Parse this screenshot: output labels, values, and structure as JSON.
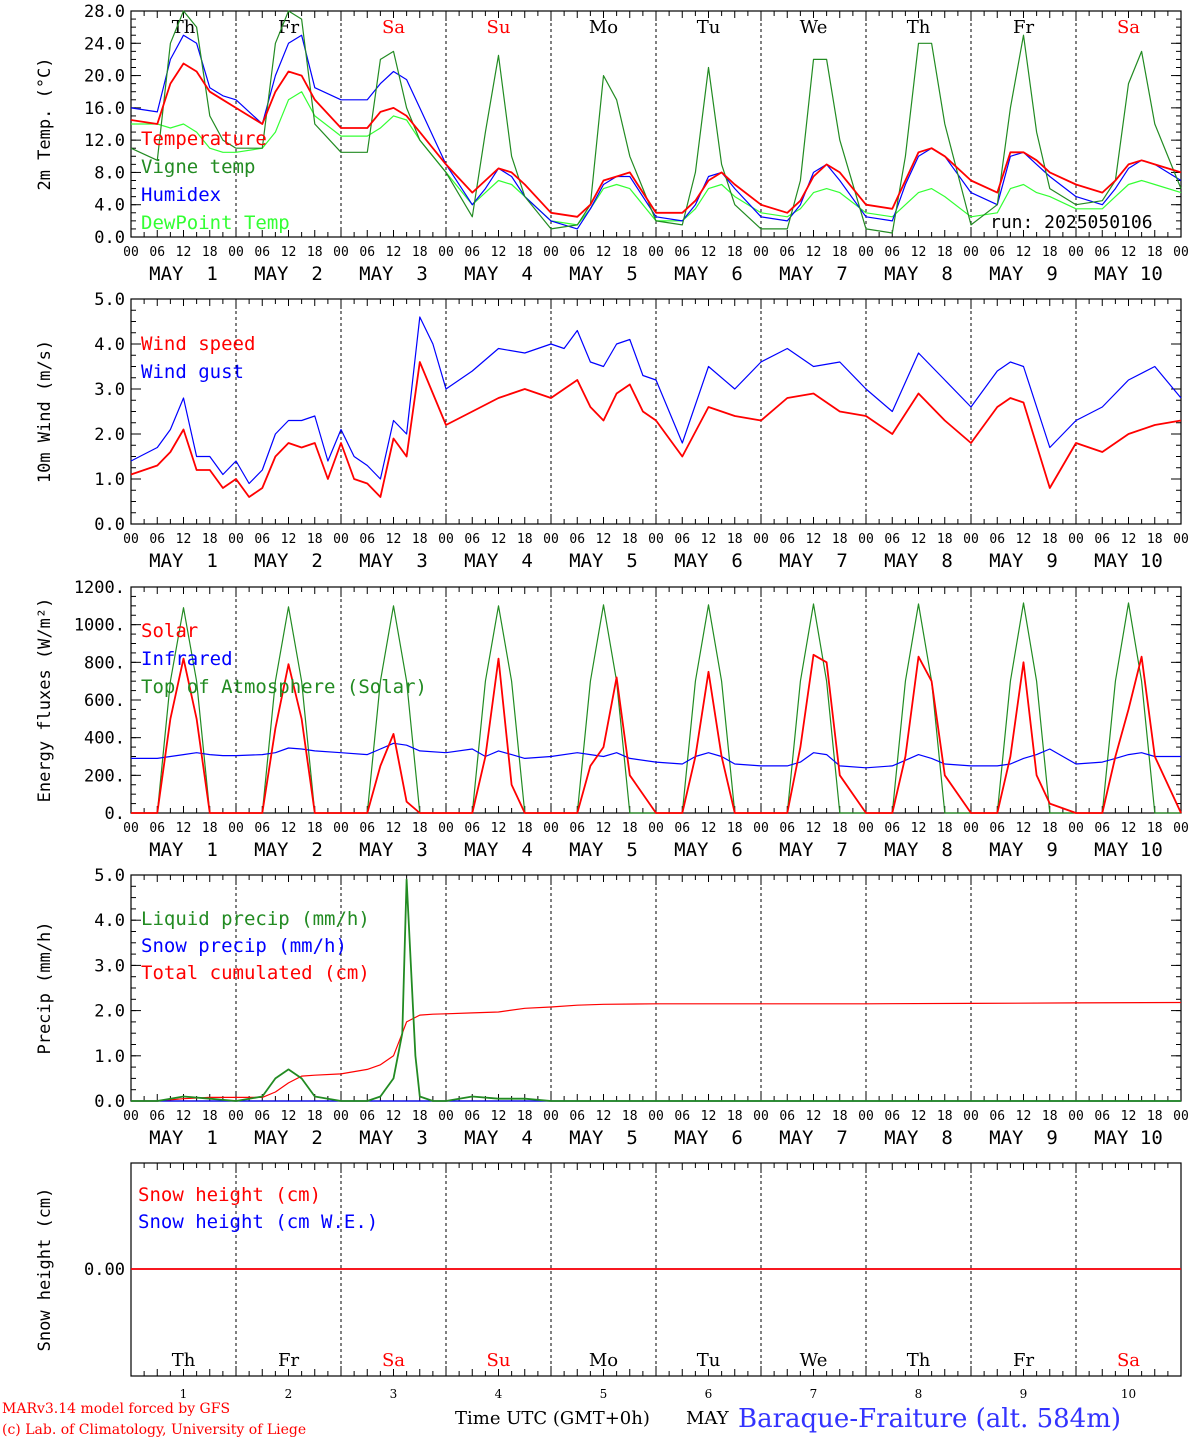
{
  "footer": {
    "model_line": "MARv3.14 model forced by GFS",
    "copyright": "(c) Lab. of Climatology, University of Liege",
    "time_label": "Time UTC (GMT+0h)",
    "month_label": "MAY",
    "station": "Baraque-Fraiture (alt. 584m)"
  },
  "colors": {
    "red": "#ff0000",
    "blue": "#0000ff",
    "green": "#228b22",
    "lightgreen": "#33ff33",
    "weekend": "#ff0000",
    "weekday": "#000000"
  },
  "axis": {
    "hour_ticks": [
      "00",
      "06",
      "12",
      "18"
    ],
    "end_tick": "00",
    "date_labels": [
      "MAY  1",
      "MAY  2",
      "MAY  3",
      "MAY  4",
      "MAY  5",
      "MAY  6",
      "MAY  7",
      "MAY  8",
      "MAY  9",
      "MAY 10"
    ],
    "weekdays": [
      "Th",
      "Fr",
      "Sa",
      "Su",
      "Mo",
      "Tu",
      "We",
      "Th",
      "Fr",
      "Sa"
    ],
    "weekend_flags": [
      false,
      false,
      true,
      true,
      false,
      false,
      false,
      false,
      false,
      true
    ],
    "day_numbers": [
      "1",
      "2",
      "3",
      "4",
      "5",
      "6",
      "7",
      "8",
      "9",
      "10"
    ]
  },
  "chart_data": [
    {
      "type": "line",
      "ylabel": "2m Temp. (°C)",
      "ylim": [
        0,
        28
      ],
      "yticks": [
        "0.0",
        "4.0",
        "8.0",
        "12.0",
        "16.0",
        "20.0",
        "24.0",
        "28.0"
      ],
      "annotation": "run: 2025050106",
      "x_hours": [
        0,
        6,
        9,
        12,
        15,
        18,
        21,
        24,
        30,
        33,
        36,
        39,
        42,
        48,
        54,
        57,
        60,
        63,
        66,
        72,
        78,
        81,
        84,
        87,
        90,
        96,
        102,
        105,
        108,
        111,
        114,
        120,
        126,
        129,
        132,
        135,
        138,
        144,
        150,
        153,
        156,
        159,
        162,
        168,
        174,
        177,
        180,
        183,
        186,
        192,
        198,
        201,
        204,
        207,
        210,
        216,
        222,
        225,
        228,
        231,
        234,
        240
      ],
      "series": [
        {
          "name": "Temperature",
          "color": "red",
          "values": [
            14.5,
            14,
            19,
            21.5,
            20.5,
            18,
            17,
            16,
            14,
            18,
            20.5,
            20,
            17,
            13.5,
            13.5,
            15.5,
            16,
            15,
            13,
            9,
            5.5,
            7,
            8.5,
            8,
            6.5,
            3,
            2.5,
            4,
            7,
            7.5,
            8,
            3,
            3,
            4.5,
            7,
            8,
            6.5,
            4,
            3,
            4.5,
            7.5,
            9,
            8,
            4,
            3.5,
            7,
            10.5,
            11,
            10,
            7,
            5.5,
            10.5,
            10.5,
            9.5,
            8,
            6.5,
            5.5,
            7,
            9,
            9.5,
            9,
            8
          ]
        },
        {
          "name": "Vigne temp",
          "color": "green",
          "values": [
            11,
            9.5,
            24,
            28,
            26,
            15,
            12,
            11,
            11,
            24,
            28,
            27,
            14,
            10.5,
            10.5,
            22,
            23,
            16,
            12,
            8,
            2.5,
            13,
            22.5,
            10,
            5,
            1,
            1.5,
            4,
            20,
            17,
            10,
            2,
            1.5,
            8,
            21,
            9,
            4,
            1,
            1,
            7,
            22,
            22,
            12,
            1,
            0.5,
            10,
            24,
            24,
            14,
            1.5,
            4,
            16,
            25,
            13,
            6,
            4,
            4.5,
            7,
            19,
            23,
            14,
            6
          ]
        },
        {
          "name": "Humidex",
          "color": "blue",
          "values": [
            16,
            15.5,
            22,
            25,
            24,
            18.5,
            17.5,
            17,
            14,
            20,
            24,
            25,
            18.5,
            17,
            17,
            19,
            20.5,
            19.5,
            16,
            9,
            4,
            6,
            8.5,
            7.5,
            5,
            2,
            1,
            3.5,
            6.5,
            7.5,
            7.5,
            2.5,
            2,
            4,
            7.5,
            8,
            6,
            2.5,
            2,
            4,
            8,
            9,
            7,
            2.5,
            2,
            6.5,
            10,
            11,
            10,
            5.5,
            4,
            10,
            10.5,
            9,
            7.5,
            5,
            4,
            6,
            8.5,
            9.5,
            9,
            7
          ]
        },
        {
          "name": "DewPoint Temp",
          "color": "lightgreen",
          "values": [
            14,
            14,
            13.5,
            14,
            13,
            11,
            10.5,
            10.5,
            11,
            13,
            17,
            18,
            15,
            12.5,
            12.5,
            13.5,
            15,
            14.5,
            12,
            8,
            4,
            5.5,
            7,
            6.5,
            5,
            2,
            1.5,
            3.5,
            6,
            6.5,
            6,
            2,
            2,
            3.5,
            6,
            6.5,
            5,
            3,
            2.5,
            3.5,
            5.5,
            6,
            5.5,
            3,
            2.5,
            4,
            5.5,
            6,
            5,
            2.5,
            3,
            6,
            6.5,
            5.5,
            5,
            3.5,
            3.5,
            5,
            6.5,
            7,
            6.5,
            5.5
          ]
        }
      ]
    },
    {
      "type": "line",
      "ylabel": "10m Wind (m/s)",
      "ylim": [
        0,
        5
      ],
      "yticks": [
        "0.0",
        "1.0",
        "2.0",
        "3.0",
        "4.0",
        "5.0"
      ],
      "x_hours": [
        0,
        6,
        9,
        12,
        15,
        18,
        21,
        24,
        27,
        30,
        33,
        36,
        39,
        42,
        45,
        48,
        51,
        54,
        57,
        60,
        63,
        66,
        69,
        72,
        78,
        84,
        90,
        96,
        99,
        102,
        105,
        108,
        111,
        114,
        117,
        120,
        126,
        132,
        138,
        144,
        150,
        156,
        162,
        168,
        174,
        180,
        186,
        192,
        198,
        201,
        204,
        210,
        216,
        222,
        228,
        234,
        240
      ],
      "series": [
        {
          "name": "Wind speed",
          "color": "red",
          "values": [
            1.1,
            1.3,
            1.6,
            2.1,
            1.2,
            1.2,
            0.8,
            1.0,
            0.6,
            0.8,
            1.5,
            1.8,
            1.7,
            1.8,
            1.0,
            1.8,
            1.0,
            0.9,
            0.6,
            1.9,
            1.5,
            3.6,
            2.9,
            2.2,
            2.5,
            2.8,
            3.0,
            2.8,
            3.0,
            3.2,
            2.6,
            2.3,
            2.9,
            3.1,
            2.5,
            2.3,
            1.5,
            2.6,
            2.4,
            2.3,
            2.8,
            2.9,
            2.5,
            2.4,
            2.0,
            2.9,
            2.3,
            1.8,
            2.6,
            2.8,
            2.7,
            0.8,
            1.8,
            1.6,
            2.0,
            2.2,
            2.3
          ]
        },
        {
          "name": "Wind gust",
          "color": "blue",
          "values": [
            1.4,
            1.7,
            2.1,
            2.8,
            1.5,
            1.5,
            1.1,
            1.4,
            0.9,
            1.2,
            2.0,
            2.3,
            2.3,
            2.4,
            1.4,
            2.1,
            1.5,
            1.3,
            1.0,
            2.3,
            2.0,
            4.6,
            4.0,
            3.0,
            3.4,
            3.9,
            3.8,
            4.0,
            3.9,
            4.3,
            3.6,
            3.5,
            4.0,
            4.1,
            3.3,
            3.2,
            1.8,
            3.5,
            3.0,
            3.6,
            3.9,
            3.5,
            3.6,
            3.0,
            2.5,
            3.8,
            3.2,
            2.6,
            3.4,
            3.6,
            3.5,
            1.7,
            2.3,
            2.6,
            3.2,
            3.5,
            2.8
          ]
        }
      ]
    },
    {
      "type": "line",
      "ylabel": "Energy fluxes (W/m²)",
      "ylim": [
        0,
        1200
      ],
      "yticks": [
        "0.",
        "200.",
        "400.",
        "600.",
        "800.",
        "1000.",
        "1200."
      ],
      "x_hours": [
        0,
        6,
        9,
        12,
        15,
        18,
        21,
        24,
        30,
        33,
        36,
        39,
        42,
        48,
        54,
        57,
        60,
        63,
        66,
        72,
        78,
        81,
        84,
        87,
        90,
        96,
        102,
        105,
        108,
        111,
        114,
        120,
        126,
        129,
        132,
        135,
        138,
        144,
        150,
        153,
        156,
        159,
        162,
        168,
        174,
        177,
        180,
        183,
        186,
        192,
        198,
        201,
        204,
        207,
        210,
        216,
        222,
        225,
        228,
        231,
        234,
        240
      ],
      "series": [
        {
          "name": "Solar",
          "color": "red",
          "values": [
            0,
            0,
            500,
            820,
            500,
            0,
            0,
            0,
            0,
            450,
            790,
            500,
            0,
            0,
            0,
            250,
            420,
            60,
            0,
            0,
            0,
            300,
            820,
            150,
            0,
            0,
            0,
            250,
            350,
            720,
            200,
            0,
            0,
            300,
            750,
            300,
            0,
            0,
            0,
            350,
            840,
            800,
            200,
            0,
            0,
            300,
            830,
            700,
            200,
            0,
            0,
            300,
            800,
            200,
            50,
            0,
            0,
            300,
            550,
            830,
            300,
            0
          ]
        },
        {
          "name": "Infrared",
          "color": "blue",
          "values": [
            290,
            290,
            300,
            310,
            320,
            310,
            305,
            305,
            310,
            320,
            345,
            340,
            330,
            320,
            310,
            340,
            370,
            360,
            330,
            320,
            340,
            300,
            330,
            310,
            290,
            300,
            320,
            310,
            300,
            320,
            290,
            270,
            260,
            300,
            320,
            300,
            260,
            250,
            250,
            270,
            320,
            310,
            250,
            240,
            250,
            280,
            310,
            290,
            260,
            250,
            250,
            260,
            290,
            310,
            340,
            260,
            270,
            290,
            310,
            320,
            300,
            300
          ]
        },
        {
          "name": "Top of Atmosphere (Solar)",
          "color": "green",
          "values": [
            0,
            0,
            700,
            1090,
            700,
            0,
            0,
            0,
            0,
            700,
            1095,
            700,
            0,
            0,
            0,
            700,
            1100,
            700,
            0,
            0,
            0,
            700,
            1100,
            700,
            0,
            0,
            0,
            700,
            1105,
            700,
            0,
            0,
            0,
            700,
            1105,
            700,
            0,
            0,
            0,
            700,
            1110,
            700,
            0,
            0,
            0,
            700,
            1110,
            700,
            0,
            0,
            0,
            700,
            1115,
            700,
            0,
            0,
            0,
            700,
            1115,
            700,
            0,
            0
          ]
        }
      ]
    },
    {
      "type": "line",
      "ylabel": "Precip (mm/h)",
      "ylim": [
        0,
        5
      ],
      "yticks": [
        "0.0",
        "1.0",
        "2.0",
        "3.0",
        "4.0",
        "5.0"
      ],
      "x_hours": [
        0,
        6,
        12,
        18,
        24,
        30,
        33,
        36,
        39,
        42,
        48,
        54,
        57,
        60,
        62,
        63,
        65,
        66,
        69,
        72,
        78,
        84,
        90,
        96,
        102,
        108,
        120,
        132,
        144,
        168,
        192,
        216,
        240
      ],
      "series": [
        {
          "name": "Liquid precip (mm/h)",
          "color": "green",
          "values": [
            0,
            0,
            0.1,
            0.05,
            0,
            0.1,
            0.5,
            0.7,
            0.5,
            0.1,
            0,
            0,
            0.1,
            0.5,
            1.5,
            4.9,
            1.0,
            0.1,
            0,
            0,
            0.1,
            0.05,
            0.05,
            0,
            0,
            0,
            0,
            0,
            0,
            0,
            0,
            0,
            0
          ]
        },
        {
          "name": "Snow precip (mm/h)",
          "color": "blue",
          "values": [
            0,
            0,
            0,
            0,
            0,
            0,
            0,
            0,
            0,
            0,
            0,
            0,
            0,
            0,
            0,
            0,
            0,
            0,
            0,
            0,
            0,
            0,
            0,
            0,
            0,
            0,
            0,
            0,
            0,
            0,
            0,
            0,
            0
          ]
        },
        {
          "name": "Total cumulated (cm)",
          "color": "red",
          "values": [
            0,
            0,
            0.05,
            0.08,
            0.08,
            0.08,
            0.2,
            0.4,
            0.55,
            0.57,
            0.6,
            0.7,
            0.8,
            1.0,
            1.5,
            1.75,
            1.85,
            1.9,
            1.92,
            1.93,
            1.95,
            1.97,
            2.05,
            2.08,
            2.12,
            2.14,
            2.15,
            2.15,
            2.15,
            2.15,
            2.16,
            2.17,
            2.18
          ]
        }
      ]
    },
    {
      "type": "line",
      "ylabel": "Snow height (cm)",
      "yticks": [
        "0.00"
      ],
      "x_hours": [
        0,
        240
      ],
      "series": [
        {
          "name": "Snow height (cm)",
          "color": "red",
          "values": [
            0,
            0
          ]
        },
        {
          "name": "Snow height (cm W.E.)",
          "color": "blue",
          "values": [
            0,
            0
          ]
        }
      ]
    }
  ]
}
